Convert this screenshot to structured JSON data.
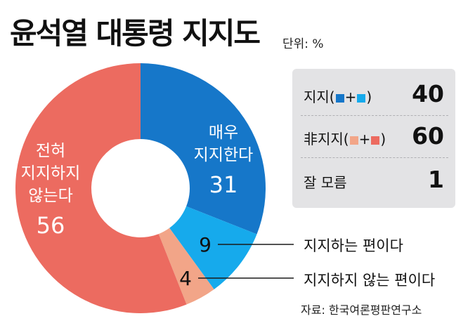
{
  "title": "윤석열 대통령 지지도",
  "unit": "단위: %",
  "colors": {
    "strong_support": "#1677c9",
    "weak_support": "#16aaec",
    "weak_oppose": "#f2a588",
    "strong_oppose": "#ec6b60",
    "hole": "#ffffff",
    "panel": "#e3e3e5"
  },
  "chart_data": {
    "type": "pie",
    "subtype": "donut",
    "slices": [
      {
        "label_lines": [
          "매우",
          "지지한다"
        ],
        "value": 31,
        "color": "#1677c9"
      },
      {
        "label": "지지하는 편이다",
        "value": 9,
        "color": "#16aaec"
      },
      {
        "label": "지지하지 않는 편이다",
        "value": 4,
        "color": "#f2a588"
      },
      {
        "label_lines": [
          "전혀",
          "지지하지",
          "않는다"
        ],
        "value": 56,
        "color": "#ec6b60"
      }
    ]
  },
  "summary": {
    "support": {
      "label": "지지(",
      "plus": "+",
      "close": ")",
      "value": "40"
    },
    "oppose": {
      "label": "非지지(",
      "plus": "+",
      "close": ")",
      "value": "60"
    },
    "unknown": {
      "label": "잘 모름",
      "value": "1"
    }
  },
  "callouts": {
    "weak_support": {
      "value": "9",
      "label": "지지하는 편이다"
    },
    "weak_oppose": {
      "value": "4",
      "label": "지지하지 않는 편이다"
    }
  },
  "source": "자료: 한국여론평판연구소"
}
